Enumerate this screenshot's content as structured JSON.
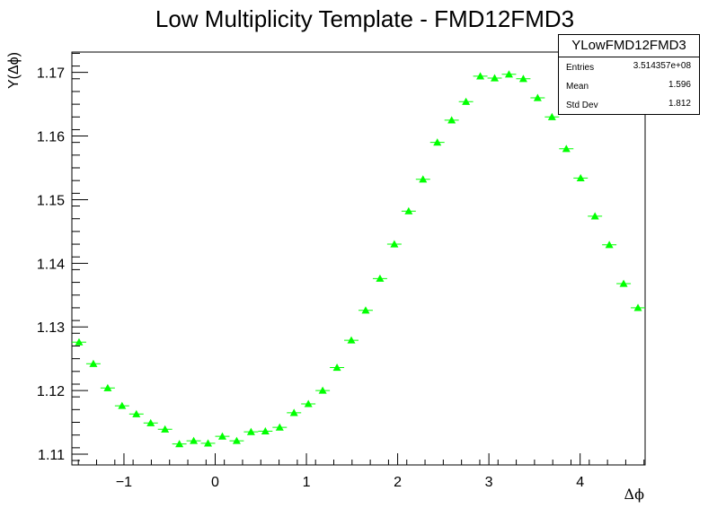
{
  "chart_data": {
    "type": "scatter",
    "title": "Low Multiplicity Template - FMD12FMD3",
    "xlabel": "Δϕ",
    "ylabel": "Y(Δϕ)",
    "xlim": [
      -1.5708,
      4.7124
    ],
    "ylim": [
      1.1083,
      1.1732
    ],
    "x_ticks": [
      -1,
      0,
      1,
      2,
      3,
      4
    ],
    "x_tick_labels": [
      "−1",
      "0",
      "1",
      "2",
      "3",
      "4"
    ],
    "y_ticks": [
      1.11,
      1.12,
      1.13,
      1.14,
      1.15,
      1.16,
      1.17
    ],
    "y_tick_labels": [
      "1.11",
      "1.12",
      "1.13",
      "1.14",
      "1.15",
      "1.16",
      "1.17"
    ],
    "grid": false,
    "legend": "top-right",
    "marker": "triangle",
    "marker_color": "#00ff00",
    "bin_width": 0.1571,
    "series": [
      {
        "x": [
          -1.4923,
          -1.3352,
          -1.1781,
          -1.021,
          -0.8639,
          -0.7069,
          -0.5498,
          -0.3927,
          -0.2356,
          -0.0785,
          0.0785,
          0.2356,
          0.3927,
          0.5498,
          0.7069,
          0.8639,
          1.021,
          1.1781,
          1.3352,
          1.4923,
          1.6493,
          1.8064,
          1.9635,
          2.1206,
          2.2777,
          2.4347,
          2.5918,
          2.7489,
          2.906,
          3.0631,
          3.2201,
          3.3772,
          3.5343,
          3.6914,
          3.8485,
          4.0055,
          4.1626,
          4.3197,
          4.4768,
          4.6339
        ],
        "values": [
          1.1276,
          1.1242,
          1.1204,
          1.1176,
          1.1163,
          1.1149,
          1.1139,
          1.1116,
          1.1121,
          1.1117,
          1.1128,
          1.1121,
          1.1135,
          1.1136,
          1.1142,
          1.1165,
          1.1179,
          1.12,
          1.1236,
          1.1279,
          1.1326,
          1.1376,
          1.143,
          1.1482,
          1.1532,
          1.159,
          1.1625,
          1.1654,
          1.1694,
          1.1691,
          1.1697,
          1.169,
          1.166,
          1.163,
          1.158,
          1.1534,
          1.1474,
          1.1429,
          1.1368,
          1.133
        ]
      }
    ]
  },
  "stats": {
    "name": "YLowFMD12FMD3",
    "rows": [
      {
        "label": "Entries",
        "value": "3.514357e+08"
      },
      {
        "label": "Mean",
        "value": "1.596"
      },
      {
        "label": "Std Dev",
        "value": "1.812"
      }
    ]
  }
}
